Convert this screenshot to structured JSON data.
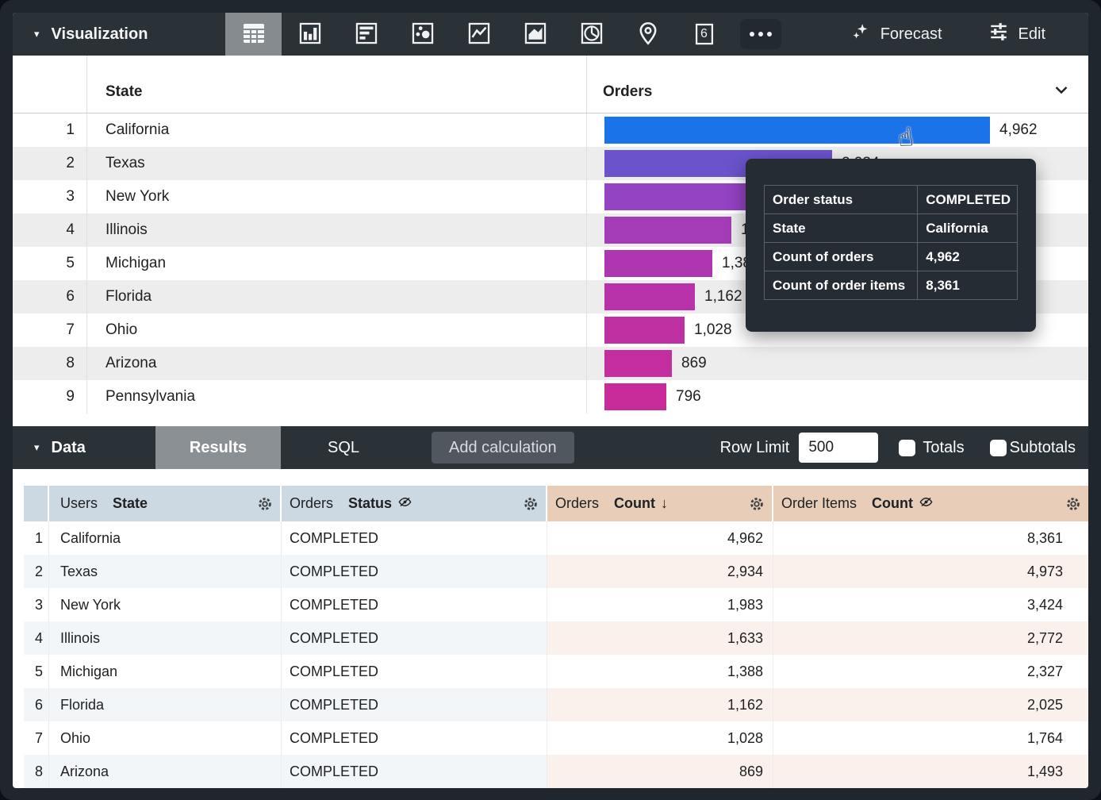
{
  "viz_toolbar": {
    "title": "Visualization",
    "selected_type": "table",
    "types": [
      "table",
      "column-chart",
      "bar-chart",
      "scatterplot",
      "line-chart",
      "area-chart",
      "pie-chart",
      "map",
      "single-value",
      "more"
    ],
    "single_value_glyph": "6",
    "forecast_label": "Forecast",
    "edit_label": "Edit"
  },
  "viz_table": {
    "state_header": "State",
    "orders_header": "Orders",
    "max_value": 4962,
    "rows": [
      {
        "n": "1",
        "state": "California",
        "value": 4962,
        "value_label": "4,962",
        "bar_color": "#1a73e8"
      },
      {
        "n": "2",
        "state": "Texas",
        "value": 2934,
        "value_label": "2,934",
        "bar_color": "#6b53cb"
      },
      {
        "n": "3",
        "state": "New York",
        "value": 1983,
        "value_label": "1,983",
        "bar_color": "#9443c2"
      },
      {
        "n": "4",
        "state": "Illinois",
        "value": 1633,
        "value_label": "1,633",
        "bar_color": "#a43cb8"
      },
      {
        "n": "5",
        "state": "Michigan",
        "value": 1388,
        "value_label": "1,388",
        "bar_color": "#ae36b0"
      },
      {
        "n": "6",
        "state": "Florida",
        "value": 1162,
        "value_label": "1,162",
        "bar_color": "#b833a9"
      },
      {
        "n": "7",
        "state": "Ohio",
        "value": 1028,
        "value_label": "1,028",
        "bar_color": "#bf30a3"
      },
      {
        "n": "8",
        "state": "Arizona",
        "value": 869,
        "value_label": "869",
        "bar_color": "#c42e9e"
      },
      {
        "n": "9",
        "state": "Pennsylvania",
        "value": 796,
        "value_label": "796",
        "bar_color": "#c72c9a"
      }
    ]
  },
  "tooltip": {
    "rows": [
      {
        "label": "Order status",
        "value": "COMPLETED"
      },
      {
        "label": "State",
        "value": "California"
      },
      {
        "label": "Count of orders",
        "value": "4,962"
      },
      {
        "label": "Count of order items",
        "value": "8,361"
      }
    ]
  },
  "data_bar": {
    "title": "Data",
    "results_tab": "Results",
    "sql_tab": "SQL",
    "add_calculation": "Add calculation",
    "row_limit_label": "Row Limit",
    "row_limit_value": "500",
    "totals_label": "Totals",
    "subtotals_label": "Subtotals"
  },
  "data_table": {
    "headers": [
      {
        "prefix": "Users",
        "bold": "State"
      },
      {
        "prefix": "Orders",
        "bold": "Status",
        "hidden_icon": true
      },
      {
        "prefix": "Orders",
        "bold": "Count",
        "sort_arrow": "↓"
      },
      {
        "prefix": "Order Items",
        "bold": "Count",
        "hidden_icon": true
      }
    ],
    "rows": [
      {
        "n": "1",
        "state": "California",
        "status": "COMPLETED",
        "orders": "4,962",
        "items": "8,361"
      },
      {
        "n": "2",
        "state": "Texas",
        "status": "COMPLETED",
        "orders": "2,934",
        "items": "4,973"
      },
      {
        "n": "3",
        "state": "New York",
        "status": "COMPLETED",
        "orders": "1,983",
        "items": "3,424"
      },
      {
        "n": "4",
        "state": "Illinois",
        "status": "COMPLETED",
        "orders": "1,633",
        "items": "2,772"
      },
      {
        "n": "5",
        "state": "Michigan",
        "status": "COMPLETED",
        "orders": "1,388",
        "items": "2,327"
      },
      {
        "n": "6",
        "state": "Florida",
        "status": "COMPLETED",
        "orders": "1,162",
        "items": "2,025"
      },
      {
        "n": "7",
        "state": "Ohio",
        "status": "COMPLETED",
        "orders": "1,028",
        "items": "1,764"
      },
      {
        "n": "8",
        "state": "Arizona",
        "status": "COMPLETED",
        "orders": "869",
        "items": "1,493"
      }
    ]
  },
  "chart_data": {
    "type": "bar",
    "orientation": "horizontal",
    "categories": [
      "California",
      "Texas",
      "New York",
      "Illinois",
      "Michigan",
      "Florida",
      "Ohio",
      "Arizona",
      "Pennsylvania"
    ],
    "values": [
      4962,
      2934,
      1983,
      1633,
      1388,
      1162,
      1028,
      869,
      796
    ],
    "series_label": "Orders Count",
    "bar_colors": [
      "#1a73e8",
      "#6b53cb",
      "#9443c2",
      "#a43cb8",
      "#ae36b0",
      "#b833a9",
      "#bf30a3",
      "#c42e9e",
      "#c72c9a"
    ],
    "xlim": [
      0,
      4962
    ]
  },
  "colors": {
    "toolbar_bg": "#2a3137",
    "selected_tile_bg": "#868b90",
    "dimension_header_bg": "#ccd9e3",
    "measure_header_bg": "#e8cdb8",
    "tooltip_bg": "#262c33",
    "accent_blue": "#1a73e8"
  }
}
